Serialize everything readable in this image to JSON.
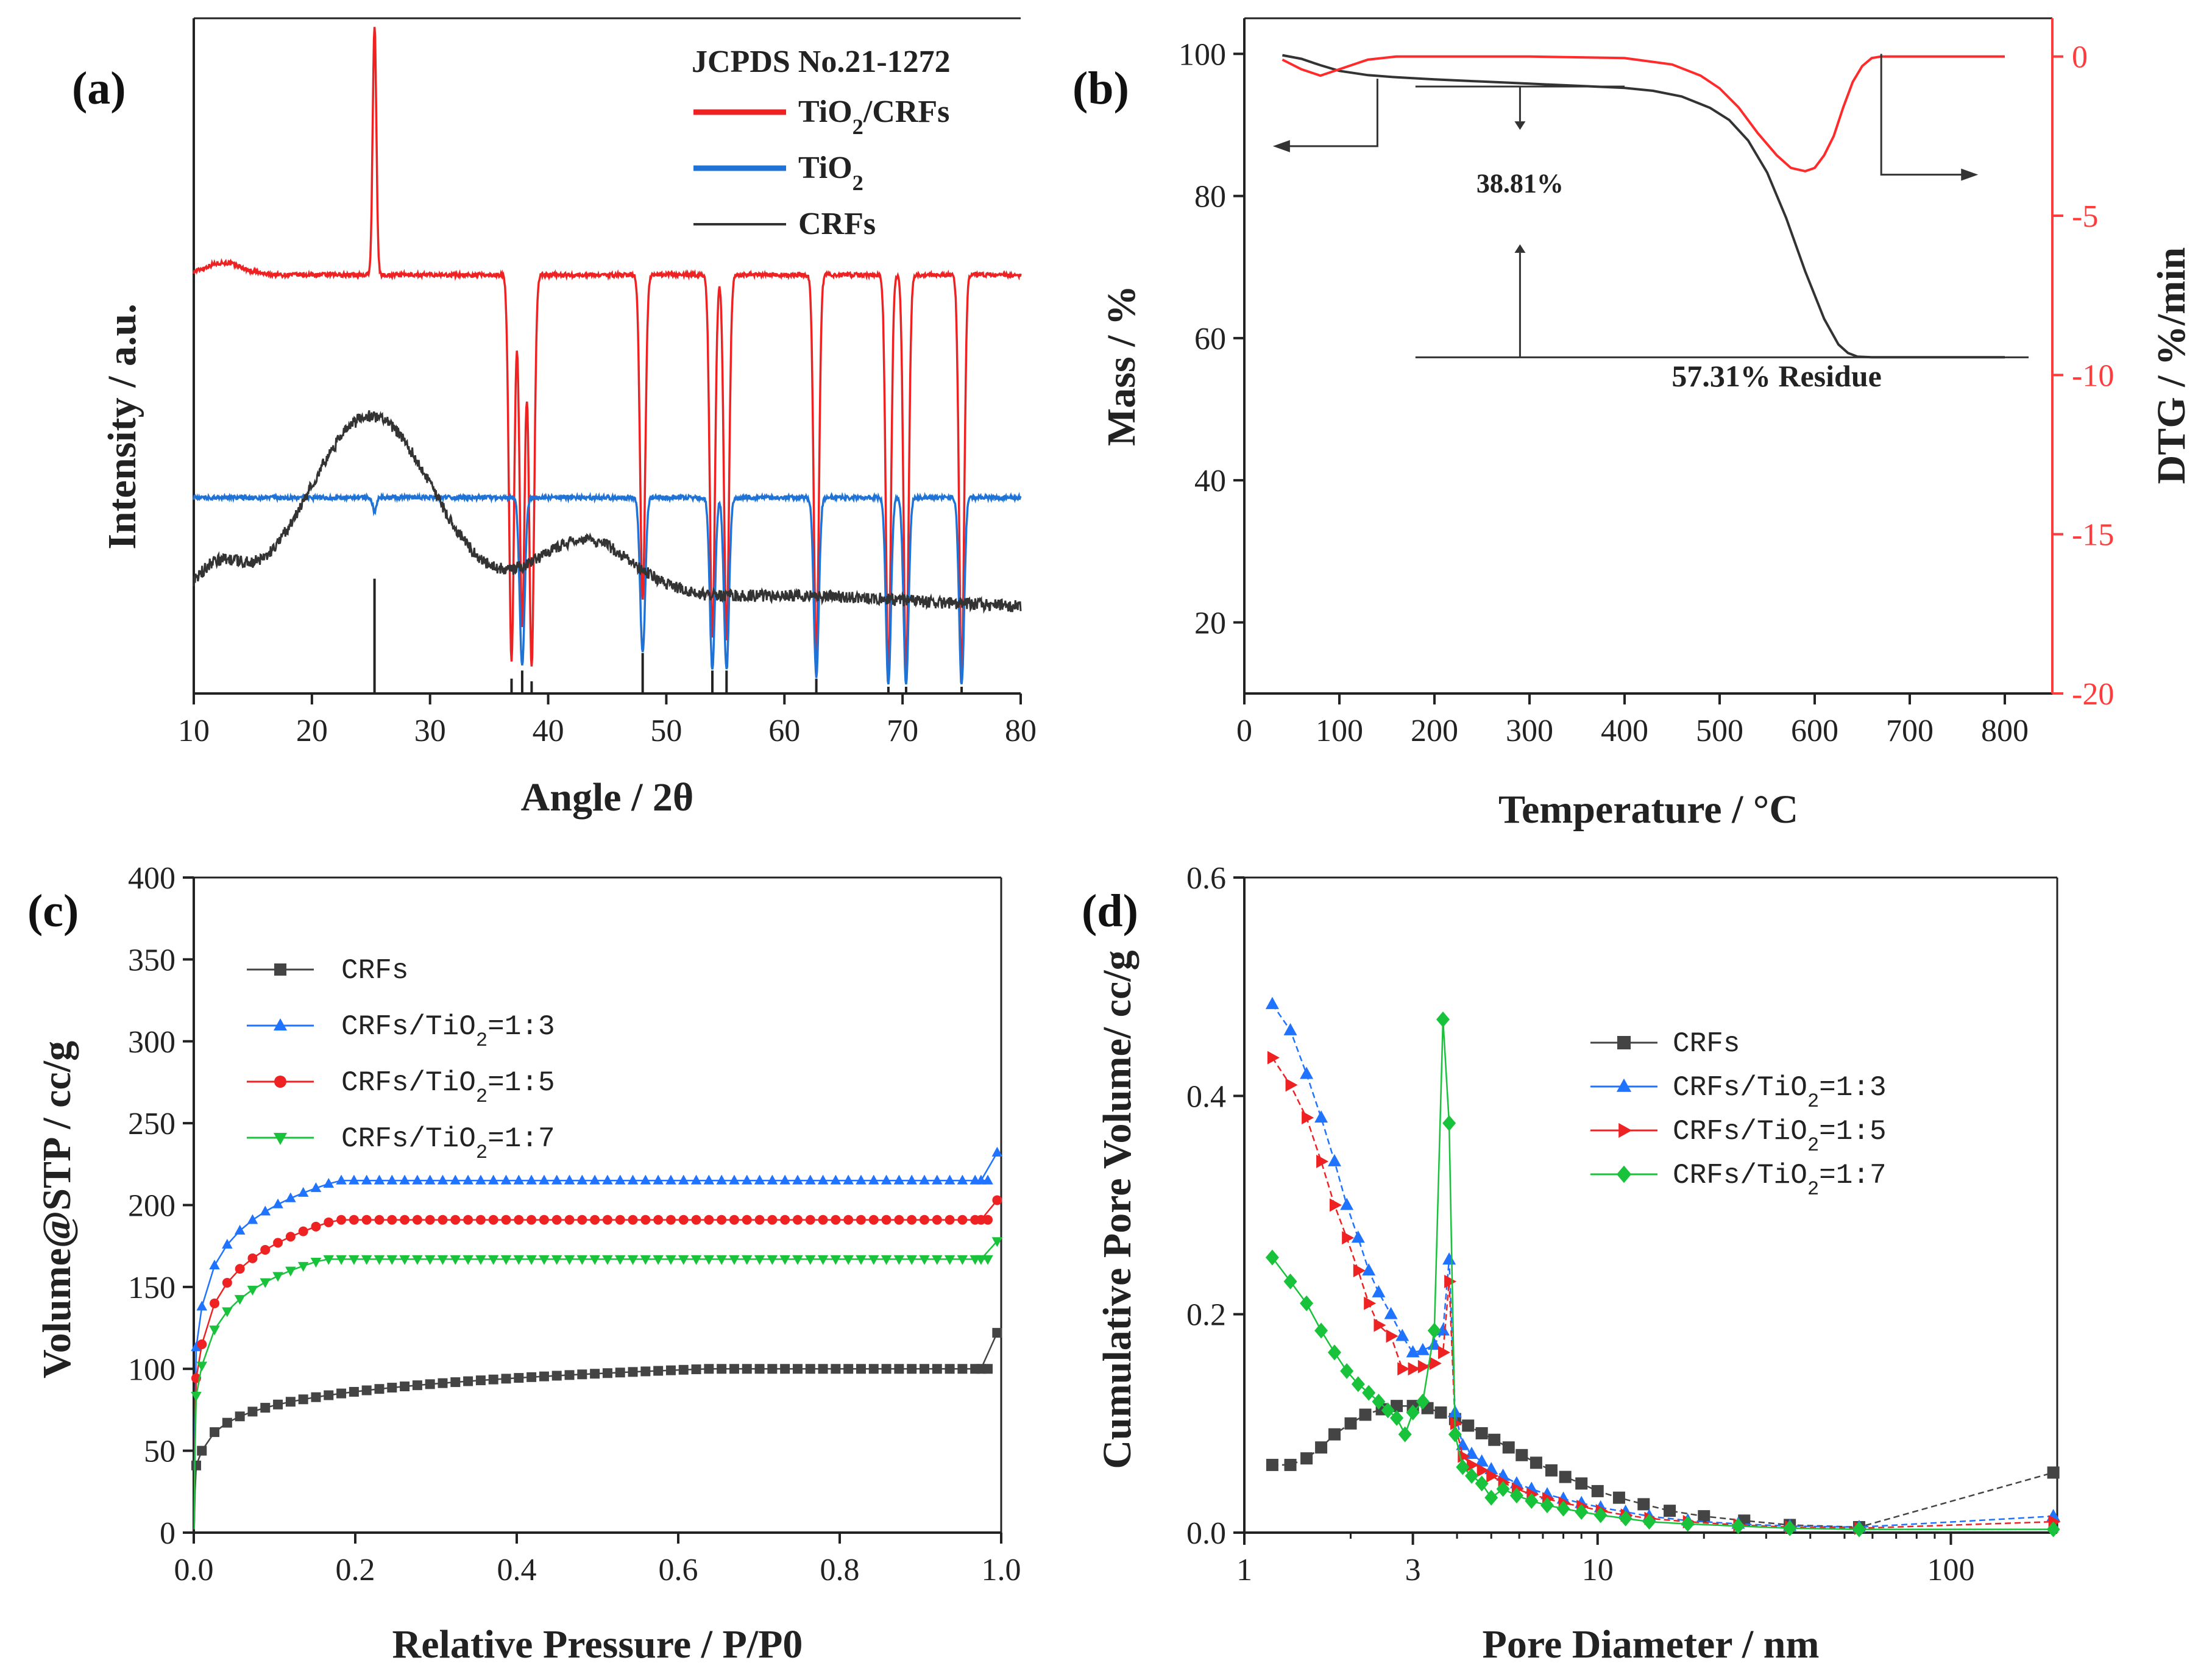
{
  "chart_data": [
    {
      "panel": "(a)",
      "type": "line",
      "xlabel": "Angle / 2θ",
      "ylabel": "Intensity / a.u.",
      "xlim": [
        10,
        80
      ],
      "xticks": [
        "10",
        "20",
        "30",
        "40",
        "50",
        "60",
        "70",
        "80"
      ],
      "reference_title": "JCPDS No.21-1272",
      "legend": [
        {
          "prefix": "TiO",
          "sub": "2",
          "suffix": "/CRFs",
          "color": "#ee2222"
        },
        {
          "prefix": "TiO",
          "sub": "2",
          "suffix": "",
          "color": "#1f73d6"
        },
        {
          "prefix": "CRFs",
          "sub": "",
          "suffix": "",
          "color": "#333333"
        }
      ],
      "series": [
        {
          "name": "TiO2/CRFs",
          "baseline": 0.62,
          "peaks": [
            [
              25.3,
              0.99
            ],
            [
              36.9,
              0.05
            ],
            [
              37.8,
              0.1
            ],
            [
              38.6,
              0.04
            ],
            [
              48.0,
              0.14
            ],
            [
              53.9,
              0.08
            ],
            [
              55.1,
              0.08
            ],
            [
              62.7,
              0.05
            ],
            [
              68.8,
              0.025
            ],
            [
              70.3,
              0.025
            ],
            [
              75.0,
              0.025
            ]
          ]
        },
        {
          "name": "TiO2",
          "baseline": 0.29,
          "peaks": [
            [
              25.3,
              0.27
            ],
            [
              37.8,
              0.04
            ],
            [
              48.0,
              0.06
            ],
            [
              53.9,
              0.035
            ],
            [
              55.1,
              0.035
            ],
            [
              62.7,
              0.025
            ],
            [
              68.8,
              0.012
            ],
            [
              70.3,
              0.012
            ],
            [
              75.0,
              0.012
            ]
          ]
        },
        {
          "name": "CRFs",
          "baseline": "amorphous",
          "humps": [
            [
              25,
              0.62
            ],
            [
              43,
              0.44
            ]
          ]
        }
      ],
      "reference_lines": [
        [
          25.3,
          0.17
        ],
        [
          36.9,
          0.022
        ],
        [
          37.8,
          0.034
        ],
        [
          38.6,
          0.018
        ],
        [
          48.0,
          0.06
        ],
        [
          53.9,
          0.034
        ],
        [
          55.1,
          0.034
        ],
        [
          62.7,
          0.022
        ],
        [
          68.8,
          0.01
        ],
        [
          70.3,
          0.01
        ],
        [
          75.0,
          0.01
        ]
      ]
    },
    {
      "panel": "(b)",
      "type": "line",
      "xlabel": "Temperature / °C",
      "ylabel": "Mass / %",
      "ylabel_right": "DTG /  %/min",
      "xlim": [
        0,
        850
      ],
      "ylim": [
        10,
        105
      ],
      "ylim_right": [
        -20,
        1.2
      ],
      "xticks": [
        "0",
        "100",
        "200",
        "300",
        "400",
        "500",
        "600",
        "700",
        "800"
      ],
      "yticks": [
        "20",
        "40",
        "60",
        "80",
        "100"
      ],
      "yticks_right": [
        "0",
        "-5",
        "-10",
        "-15",
        "-20"
      ],
      "series": [
        {
          "name": "Mass",
          "axis": "left",
          "x": [
            40,
            60,
            80,
            100,
            130,
            160,
            200,
            250,
            300,
            350,
            400,
            430,
            460,
            490,
            510,
            530,
            550,
            570,
            590,
            610,
            625,
            635,
            645,
            660,
            680,
            700,
            750,
            800
          ],
          "y": [
            99.8,
            99.3,
            98.4,
            97.6,
            97.0,
            96.7,
            96.4,
            96.1,
            95.8,
            95.5,
            95.2,
            94.8,
            94.0,
            92.4,
            90.7,
            87.8,
            83.3,
            76.9,
            69.4,
            62.7,
            59.1,
            57.9,
            57.4,
            57.31,
            57.31,
            57.31,
            57.31,
            57.31
          ]
        },
        {
          "name": "DTG",
          "axis": "right",
          "x": [
            40,
            60,
            80,
            100,
            130,
            160,
            200,
            300,
            400,
            450,
            480,
            500,
            520,
            540,
            560,
            575,
            590,
            600,
            610,
            620,
            630,
            640,
            650,
            660,
            670,
            680,
            700,
            750,
            800
          ],
          "y": [
            -0.1,
            -0.4,
            -0.6,
            -0.4,
            -0.1,
            0.0,
            0.0,
            0.0,
            -0.05,
            -0.25,
            -0.6,
            -1.0,
            -1.6,
            -2.4,
            -3.1,
            -3.5,
            -3.6,
            -3.5,
            -3.1,
            -2.5,
            -1.6,
            -0.8,
            -0.3,
            -0.05,
            0.0,
            0.0,
            0.0,
            0.0,
            0.0
          ]
        }
      ],
      "annotations": [
        "38.81%",
        "57.31% Residue"
      ]
    },
    {
      "panel": "(c)",
      "type": "scatter",
      "xlabel": "Relative Pressure /  P/P0",
      "ylabel": "Volume@STP  /  cc/g",
      "xlim": [
        0,
        1.0
      ],
      "ylim": [
        0,
        400
      ],
      "xticks": [
        "0.0",
        "0.2",
        "0.4",
        "0.6",
        "0.8",
        "1.0"
      ],
      "yticks": [
        "0",
        "50",
        "100",
        "150",
        "200",
        "250",
        "300",
        "350",
        "400"
      ],
      "legend": [
        {
          "prefix": "CRFs",
          "sub": "",
          "suffix": "",
          "color": "#444444",
          "marker": "square"
        },
        {
          "prefix": "CRFs/TiO",
          "sub": "2",
          "suffix": "=1:3",
          "color": "#1f73ff",
          "marker": "triangle-up"
        },
        {
          "prefix": "CRFs/TiO",
          "sub": "2",
          "suffix": "=1:5",
          "color": "#ee2222",
          "marker": "circle"
        },
        {
          "prefix": "CRFs/TiO",
          "sub": "2",
          "suffix": "=1:7",
          "color": "#18c23a",
          "marker": "triangle-down"
        }
      ],
      "series": [
        {
          "name": "CRFs",
          "v0": 50,
          "a": 6.6,
          "end": 100,
          "last": 122
        },
        {
          "name": "CRFs/TiO2=1:3",
          "v0": 138,
          "a": 14.6,
          "end": 215,
          "last": 232
        },
        {
          "name": "CRFs/TiO2=1:5",
          "v0": 115,
          "a": 14.5,
          "end": 191,
          "last": 203
        },
        {
          "name": "CRFs/TiO2=1:7",
          "v0": 102,
          "a": 12.8,
          "end": 167,
          "last": 178
        }
      ]
    },
    {
      "panel": "(d)",
      "type": "scatter",
      "xlabel": "Pore Diameter /  nm",
      "ylabel": "Cumulative Pore Volume/  cc/g",
      "xscale": "log",
      "xlim": [
        1,
        200
      ],
      "ylim": [
        0,
        0.6
      ],
      "xticks": [
        "1",
        "3",
        "10",
        "100"
      ],
      "yticks": [
        "0.0",
        "0.2",
        "0.4",
        "0.6"
      ],
      "legend": [
        {
          "prefix": "CRFs",
          "sub": "",
          "suffix": "",
          "color": "#444444",
          "marker": "square"
        },
        {
          "prefix": "CRFs/TiO",
          "sub": "2",
          "suffix": "=1:3",
          "color": "#1f73ff",
          "marker": "triangle-up"
        },
        {
          "prefix": "CRFs/TiO",
          "sub": "2",
          "suffix": "=1:5",
          "color": "#ee2222",
          "marker": "triangle-right"
        },
        {
          "prefix": "CRFs/TiO",
          "sub": "2",
          "suffix": "=1:7",
          "color": "#18c23a",
          "marker": "diamond"
        }
      ],
      "series": [
        {
          "name": "CRFs",
          "x": [
            1.2,
            1.35,
            1.5,
            1.65,
            1.8,
            2.0,
            2.2,
            2.45,
            2.7,
            3.0,
            3.3,
            3.6,
            3.95,
            4.3,
            4.7,
            5.1,
            5.6,
            6.1,
            6.7,
            7.4,
            8.1,
            9.0,
            10.0,
            11.5,
            13.5,
            16.0,
            20.0,
            26.0,
            35.0,
            55.0,
            195.0
          ],
          "y": [
            0.062,
            0.062,
            0.068,
            0.078,
            0.09,
            0.1,
            0.108,
            0.113,
            0.116,
            0.116,
            0.114,
            0.11,
            0.104,
            0.098,
            0.091,
            0.085,
            0.078,
            0.071,
            0.064,
            0.057,
            0.051,
            0.045,
            0.038,
            0.032,
            0.026,
            0.02,
            0.015,
            0.011,
            0.007,
            0.005,
            0.055
          ]
        },
        {
          "name": "CRFs/TiO2=1:3",
          "x": [
            1.2,
            1.35,
            1.5,
            1.65,
            1.8,
            1.95,
            2.1,
            2.25,
            2.4,
            2.6,
            2.8,
            3.0,
            3.2,
            3.45,
            3.65,
            3.8,
            3.95,
            4.15,
            4.4,
            4.7,
            5.0,
            5.4,
            5.9,
            6.5,
            7.2,
            8.0,
            9.0,
            10.2,
            12.0,
            14.0,
            18.0,
            25.0,
            35.0,
            55.0,
            195.0
          ],
          "y": [
            0.484,
            0.46,
            0.42,
            0.38,
            0.34,
            0.3,
            0.27,
            0.24,
            0.22,
            0.2,
            0.18,
            0.165,
            0.167,
            0.172,
            0.185,
            0.25,
            0.11,
            0.08,
            0.072,
            0.065,
            0.058,
            0.052,
            0.045,
            0.04,
            0.035,
            0.031,
            0.027,
            0.023,
            0.019,
            0.015,
            0.011,
            0.008,
            0.006,
            0.005,
            0.015
          ]
        },
        {
          "name": "CRFs/TiO2=1:5",
          "x": [
            1.2,
            1.35,
            1.5,
            1.65,
            1.8,
            1.95,
            2.1,
            2.25,
            2.4,
            2.6,
            2.8,
            3.0,
            3.2,
            3.45,
            3.65,
            3.8,
            3.95,
            4.15,
            4.4,
            4.7,
            5.0,
            5.4,
            5.9,
            6.5,
            7.2,
            8.0,
            9.0,
            10.2,
            12.0,
            14.0,
            18.0,
            25.0,
            35.0,
            55.0,
            195.0
          ],
          "y": [
            0.435,
            0.41,
            0.38,
            0.34,
            0.3,
            0.27,
            0.24,
            0.21,
            0.19,
            0.18,
            0.15,
            0.15,
            0.152,
            0.155,
            0.165,
            0.23,
            0.1,
            0.07,
            0.062,
            0.057,
            0.052,
            0.046,
            0.04,
            0.035,
            0.031,
            0.027,
            0.024,
            0.02,
            0.016,
            0.013,
            0.01,
            0.007,
            0.005,
            0.004,
            0.01
          ]
        },
        {
          "name": "CRFs/TiO2=1:7",
          "x": [
            1.2,
            1.35,
            1.5,
            1.65,
            1.8,
            1.95,
            2.1,
            2.25,
            2.4,
            2.55,
            2.7,
            2.85,
            3.0,
            3.2,
            3.45,
            3.65,
            3.8,
            3.95,
            4.15,
            4.4,
            4.7,
            5.0,
            5.4,
            5.9,
            6.5,
            7.2,
            8.0,
            9.0,
            10.2,
            12.0,
            14.0,
            18.0,
            25.0,
            35.0,
            55.0,
            195.0
          ],
          "y": [
            0.252,
            0.23,
            0.21,
            0.185,
            0.165,
            0.148,
            0.136,
            0.128,
            0.12,
            0.112,
            0.105,
            0.09,
            0.11,
            0.12,
            0.185,
            0.47,
            0.375,
            0.09,
            0.06,
            0.052,
            0.045,
            0.032,
            0.04,
            0.034,
            0.029,
            0.025,
            0.022,
            0.019,
            0.016,
            0.013,
            0.01,
            0.008,
            0.006,
            0.004,
            0.003,
            0.003
          ]
        }
      ]
    }
  ]
}
